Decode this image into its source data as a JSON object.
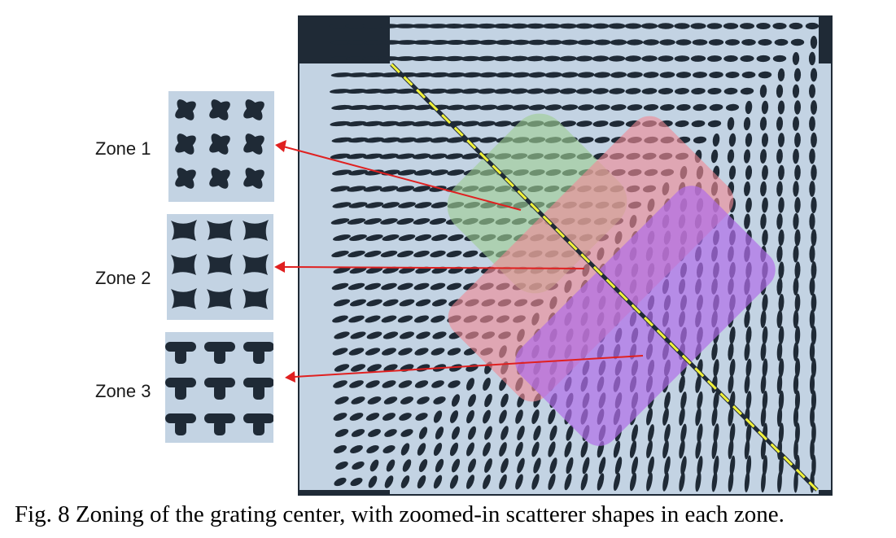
{
  "figure": {
    "caption": "Fig. 8 Zoning of the grating center, with zoomed-in scatterer shapes in each zone.",
    "zones": [
      {
        "label": "Zone 1",
        "overlay_color": "#9fcf95",
        "shape": "x-cross"
      },
      {
        "label": "Zone 2",
        "overlay_color": "#f08a96",
        "shape": "butterfly"
      },
      {
        "label": "Zone 3",
        "overlay_color": "#b06ee8",
        "shape": "t-shape"
      }
    ],
    "colors": {
      "background": "#c3d3e3",
      "scatterer": "#1f2a36",
      "diagonal_line": "#f2f23a",
      "arrow": "#e02020",
      "frame": "#1f2a36"
    }
  }
}
